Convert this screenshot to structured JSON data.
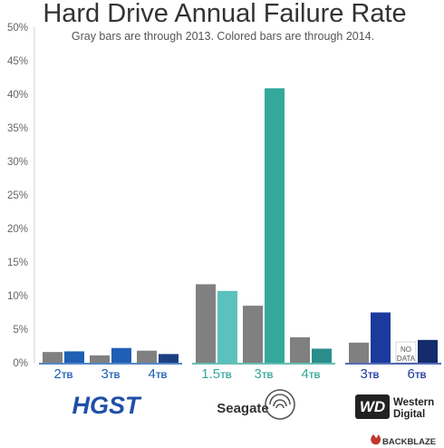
{
  "chart_data": {
    "type": "bar",
    "title": "Hard Drive Annual Failure Rate",
    "subtitle": "Gray bars are through 2013.  Colored bars are through 2014.",
    "ylim": [
      0,
      50
    ],
    "yticks": [
      "0%",
      "5%",
      "10%",
      "15%",
      "20%",
      "25%",
      "30%",
      "35%",
      "40%",
      "45%",
      "50%"
    ],
    "ytick_values": [
      0,
      5,
      10,
      15,
      20,
      25,
      30,
      35,
      40,
      45,
      50
    ],
    "grid": false,
    "groups": [
      {
        "manufacturer": "HGST",
        "categories": [
          {
            "capacity": "2",
            "unit": "TB",
            "through_2013": 1.6,
            "through_2014": 1.7,
            "color": "#1f5fb4"
          },
          {
            "capacity": "3",
            "unit": "TB",
            "through_2013": 1.1,
            "through_2014": 2.2,
            "color": "#1f5fb4"
          },
          {
            "capacity": "4",
            "unit": "TB",
            "through_2013": 1.8,
            "through_2014": 1.3,
            "color": "#1c3f84"
          }
        ]
      },
      {
        "manufacturer": "Seagate",
        "categories": [
          {
            "capacity": "1.5",
            "unit": "TB",
            "through_2013": 11.7,
            "through_2014": 10.7,
            "color": "#5bc1be"
          },
          {
            "capacity": "3",
            "unit": "TB",
            "through_2013": 8.5,
            "through_2014": 40.9,
            "color": "#34a89a"
          },
          {
            "capacity": "4",
            "unit": "TB",
            "through_2013": 3.8,
            "through_2014": 2.1,
            "color": "#2b8c8c"
          }
        ]
      },
      {
        "manufacturer": "Western Digital",
        "categories": [
          {
            "capacity": "3",
            "unit": "TB",
            "through_2013": 3.0,
            "through_2014": 7.5,
            "color": "#1c3a9e"
          },
          {
            "capacity": "6",
            "unit": "TB",
            "through_2013": null,
            "through_2014": 3.4,
            "color": "#142c6e"
          }
        ]
      }
    ],
    "no_data_label": "NO DATA",
    "gray_color": "#808080",
    "label_colors": {
      "HGST": "#1f5fb4",
      "Seagate": "#34a89a",
      "Western Digital": "#1c3a9e"
    }
  },
  "logos": {
    "hgst": "HGST",
    "seagate": "Seagate",
    "wd_mark": "WD",
    "wd_line1": "Western",
    "wd_line2": "Digital",
    "backblaze": "BACKBLAZE"
  }
}
